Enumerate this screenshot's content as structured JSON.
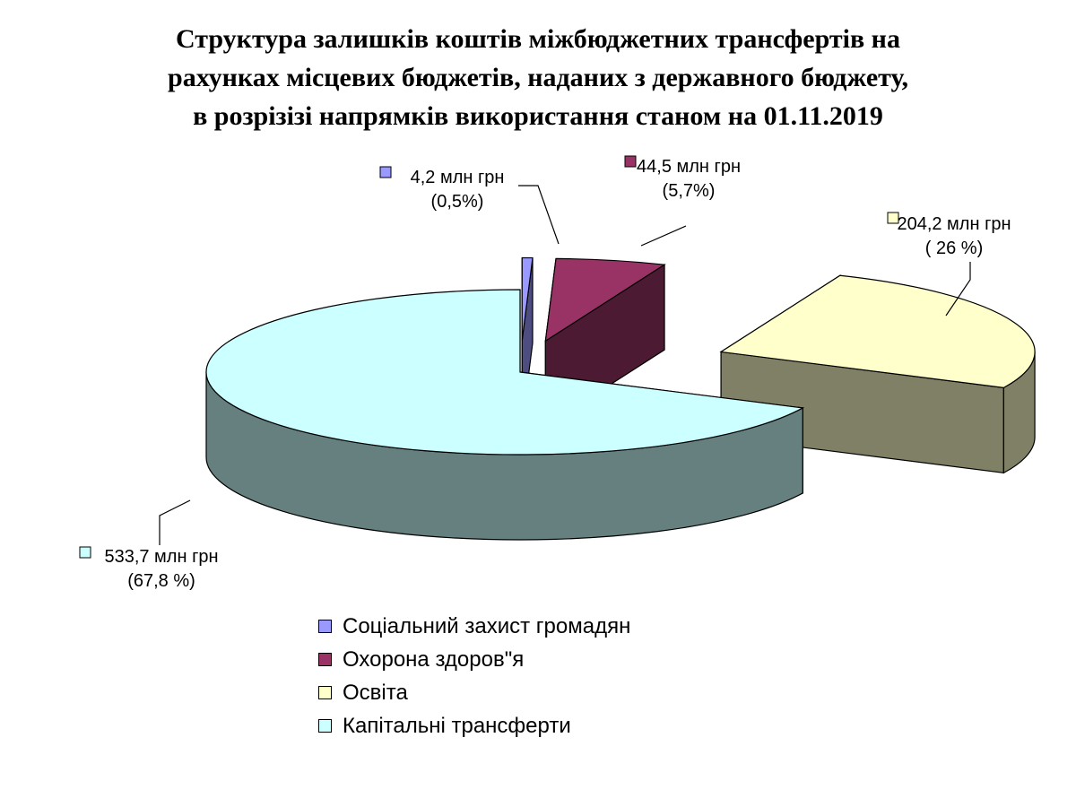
{
  "chart_data": {
    "type": "pie",
    "title_lines": [
      "Структура залишків коштів міжбюджетних трансфертів на",
      "рахунках місцевих бюджетів, наданих з державного бюджету,",
      "в розрізізі напрямків використання станом на 01.11.2019"
    ],
    "slices": [
      {
        "name": "Соціальний  захист громадян",
        "value": 4.2,
        "percent": 0.5,
        "label_value": "4,2 млн грн",
        "label_pct": "(0,5%)",
        "color": "#9999ff",
        "exploded": true
      },
      {
        "name": "Охорона здоров\"я",
        "value": 44.5,
        "percent": 5.7,
        "label_value": "44,5 млн грн",
        "label_pct": "(5,7%)",
        "color": "#993366",
        "exploded": true
      },
      {
        "name": "Освіта",
        "value": 204.2,
        "percent": 26,
        "label_value": "204,2 млн грн",
        "label_pct": "( 26 %)",
        "color": "#ffffcc",
        "exploded": true
      },
      {
        "name": "Капітальні трансферти",
        "value": 533.7,
        "percent": 67.8,
        "label_value": "533,7 млн грн",
        "label_pct": "(67,8 %)",
        "color": "#ccffff",
        "exploded": false
      }
    ],
    "legend_position": "bottom",
    "style": "3d-exploded-pie"
  }
}
